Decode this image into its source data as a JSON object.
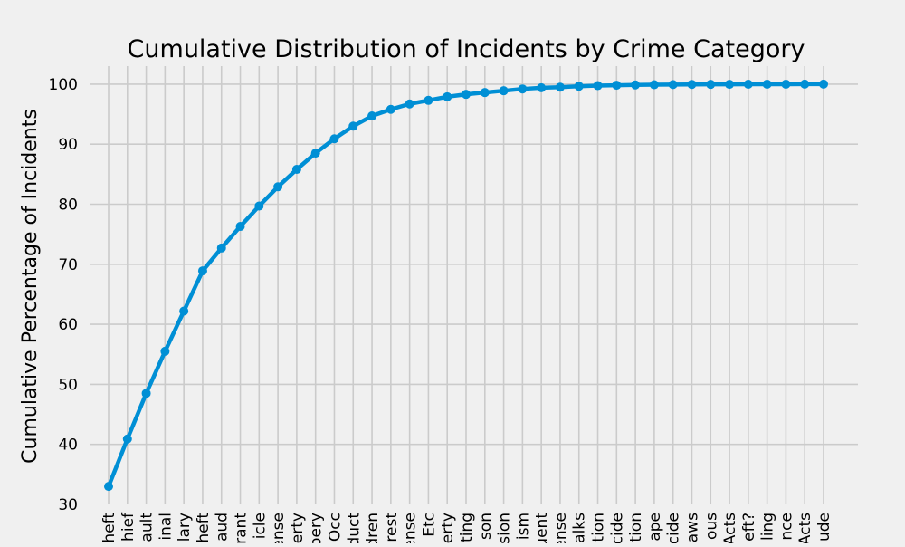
{
  "chart_data": {
    "type": "line",
    "title": "Cumulative Distribution of Incidents by Crime Category",
    "xlabel": "",
    "ylabel": "Cumulative Percentage of Incidents",
    "ylim": [
      30,
      103
    ],
    "yticks": [
      30,
      40,
      50,
      60,
      70,
      80,
      90,
      100
    ],
    "grid": true,
    "categories": [
      "heft",
      "hief",
      "ault",
      "inal",
      "lary",
      "heft",
      "aud",
      "rant",
      "icle",
      "ense",
      "erty",
      "bery",
      "Occ",
      "duct",
      "dren",
      "rest",
      "ense",
      "Etc",
      "erty",
      "ting",
      "son",
      "sion",
      "ism",
      "uent",
      "ense",
      "alks",
      "tion",
      "cide",
      "tion",
      "ape",
      "cide",
      "aws",
      "ous",
      "Acts",
      "eft?",
      "ling",
      "nce",
      "Acts",
      "ude"
    ],
    "values": [
      33.0,
      40.9,
      48.5,
      55.5,
      62.2,
      68.9,
      72.7,
      76.3,
      79.7,
      82.9,
      85.8,
      88.5,
      90.9,
      93.0,
      94.7,
      95.8,
      96.7,
      97.3,
      97.9,
      98.3,
      98.6,
      98.9,
      99.2,
      99.4,
      99.5,
      99.65,
      99.75,
      99.82,
      99.87,
      99.9,
      99.93,
      99.95,
      99.96,
      99.97,
      99.98,
      99.99,
      99.99,
      100.0,
      100.0
    ],
    "colors": {
      "line": "#008fd5",
      "grid": "#cbcbcb",
      "background": "#f0f0f0"
    }
  }
}
